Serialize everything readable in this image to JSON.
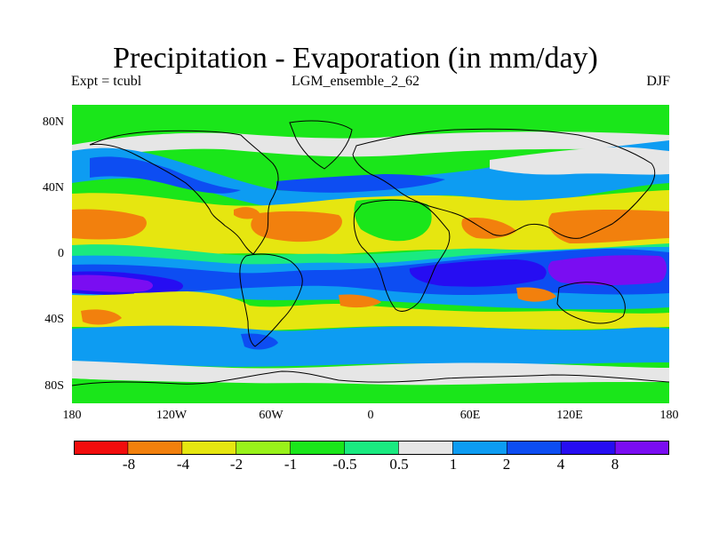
{
  "title": "Precipitation - Evaporation (in mm/day)",
  "experiment": "Expt = tcubl",
  "run": "LGM_ensemble_2_62",
  "season": "DJF",
  "lat_labels": [
    "80N",
    "40N",
    "0",
    "40S",
    "80S"
  ],
  "lon_labels": [
    "180",
    "120W",
    "60W",
    "0",
    "60E",
    "120E",
    "180"
  ],
  "colorbar": {
    "colors": [
      "#f20d0d",
      "#f2800d",
      "#e6e610",
      "#99f21a",
      "#1ae61a",
      "#1aea80",
      "#e6e6e6",
      "#0d9cf2",
      "#0d4df2",
      "#260df2",
      "#7a0df2"
    ],
    "labels": [
      "-8",
      "-4",
      "-2",
      "-1",
      "-0.5",
      "0.5",
      "1",
      "2",
      "4",
      "8"
    ]
  },
  "map_colors": {
    "base": "#1ae61a",
    "dry_moderate": "#99f21a",
    "dry_strong": "#e6e610",
    "dry_extreme": "#f2800d",
    "wet_light": "#1aea80",
    "wet_gray": "#e6e6e6",
    "wet_medium": "#0d9cf2",
    "wet_strong": "#0d4df2",
    "wet_heavy": "#260df2",
    "wet_extreme": "#7a0df2",
    "coast": "#000000"
  }
}
